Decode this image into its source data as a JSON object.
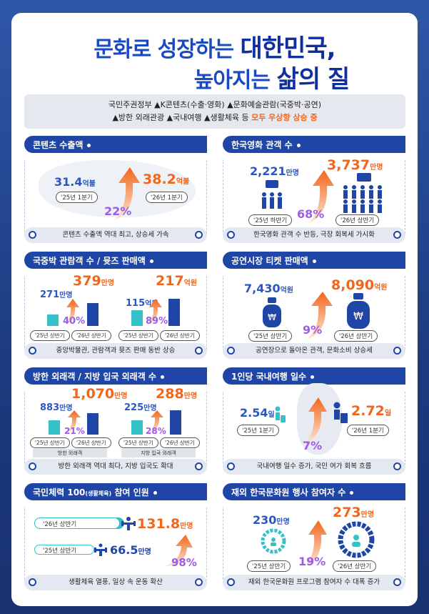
{
  "title": {
    "line1_prefix": "문화로 성장하는 ",
    "line1_big": "대한민국,",
    "line2_prefix": "높아지는 ",
    "line2_big": "삶의 질"
  },
  "notice": {
    "line1": "국민주권정부 ▲K콘텐츠(수출·영화) ▲문화예술관람(국중박·공연)",
    "line2_a": "▲방한 외래관광 ▲국내여행 ▲생활체육 등 ",
    "line2_b": "모두 우상향 상승 중"
  },
  "sections": {
    "exports": {
      "title": "콘텐츠 수출액",
      "before": "31.4",
      "before_unit": "억불",
      "before_period": "'25년 1분기",
      "after": "38.2",
      "after_unit": "억불",
      "after_period": "'26년 1분기",
      "pct": "22%",
      "footer": "콘텐츠 수출액 역대 최고, 상승세 가속"
    },
    "film": {
      "title": "한국영화 관객 수",
      "before": "2,221",
      "before_unit": "만명",
      "before_period": "'25년 하반기",
      "after": "3,737",
      "after_unit": "만명",
      "after_period": "'26년 상반기",
      "pct": "68%",
      "footer": "한국영화 관객 수 반등, 극장 회복세 가시화"
    },
    "museum": {
      "title": "국중박 관람객 수 / 뮷즈 판매액",
      "v1_before": "271",
      "v1_before_unit": "만명",
      "v1_after": "379",
      "v1_after_unit": "만명",
      "v1_pct": "40%",
      "v2_before": "115",
      "v2_before_unit": "억원",
      "v2_after": "217",
      "v2_after_unit": "억원",
      "v2_pct": "89%",
      "p1": "'25년 상반기",
      "p2": "'26년 상반기",
      "footer": "중앙박물관, 관람객과 뮷즈 판매 동반 상승"
    },
    "tickets": {
      "title": "공연시장 티켓 판매액",
      "before": "7,430",
      "before_unit": "억원",
      "before_period": "'25년 상반기",
      "after": "8,090",
      "after_unit": "억원",
      "after_period": "'26년 상반기",
      "pct": "9%",
      "footer": "공연장으로 돌아온 관객, 문화소비 상승세"
    },
    "tourists": {
      "title": "방한 외래객 / 지방 입국 외래객 수",
      "v1_before": "883",
      "v1_before_unit": "만명",
      "v1_after": "1,070",
      "v1_after_unit": "만명",
      "v1_pct": "21%",
      "v2_before": "225",
      "v2_before_unit": "만명",
      "v2_after": "288",
      "v2_after_unit": "만명",
      "v2_pct": "28%",
      "p1": "'25년 상반기",
      "p2": "'26년 상반기",
      "sub1": "방한 외래객",
      "sub2": "지방 입국 외래객",
      "footer": "방한 외래객 역대 최다, 지방 입국도 확대"
    },
    "travel": {
      "title": "1인당 국내여행 일수",
      "before": "2.54",
      "before_unit": "일",
      "before_period": "'25년 1분기",
      "after": "2.72",
      "after_unit": "일",
      "after_period": "'26년 1분기",
      "pct": "7%",
      "footer": "국내여행 일수 증가, 국민 여가 회복 흐름"
    },
    "fitness": {
      "title_a": "국민체력 100",
      "title_b": "(생활체육)",
      "title_c": " 참여 인원",
      "after_period": "'26년 상반기",
      "after": "131.8",
      "after_unit": "만명",
      "before_period": "'25년 상반기",
      "before": "66.5",
      "before_unit": "만명",
      "pct": "98%",
      "footer": "생활체육 열풍, 일상 속 운동 확산"
    },
    "culture_center": {
      "title": "재외 한국문화원 행사 참여자 수",
      "before": "230",
      "before_unit": "만명",
      "before_period": "'25년 상반기",
      "after": "273",
      "after_unit": "만명",
      "after_period": "'26년 상반기",
      "pct": "19%",
      "footer": "재외 한국문화원 프로그램 참여자 수 대폭 증가"
    }
  },
  "colors": {
    "navy": "#1f46a6",
    "orange": "#f2661c",
    "purple": "#9b5de5",
    "teal": "#34c1c7"
  }
}
